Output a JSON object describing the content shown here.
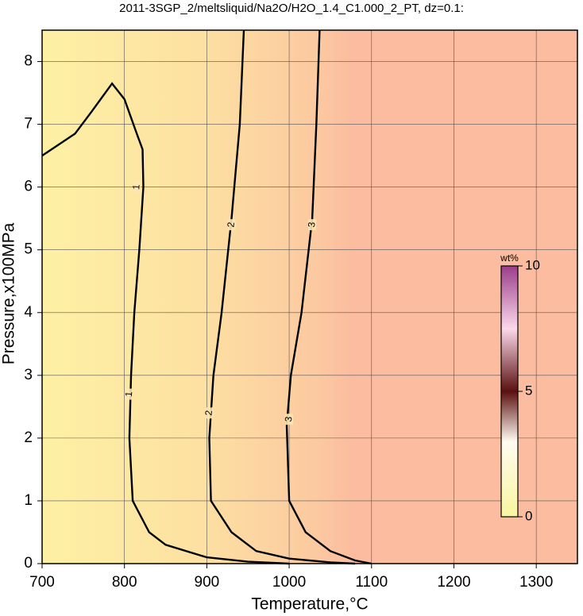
{
  "chart_data": {
    "type": "contour",
    "title": "2011-3SGP_2/meltsliquid/Na2O/H2O_1.4_C1.000_2_PT, dz=0.1:",
    "x_label": "Temperature,°C",
    "y_label": "Pressure,x100MPa",
    "xlim": [
      700,
      1350
    ],
    "xticks": [
      700,
      800,
      900,
      1000,
      1100,
      1200,
      1300
    ],
    "ylim": [
      0,
      8.5
    ],
    "yticks": [
      0,
      1,
      2,
      3,
      4,
      5,
      6,
      7,
      8
    ],
    "grid": true,
    "line_color": "#000000",
    "contours": [
      {
        "level": 1,
        "x": [
          700,
          740,
          760,
          785,
          800,
          815,
          822,
          823,
          818,
          812,
          808,
          806,
          810,
          830,
          850,
          900,
          950,
          1000
        ],
        "y": [
          6.5,
          6.85,
          7.2,
          7.65,
          7.4,
          6.85,
          6.6,
          6.0,
          5.0,
          4.0,
          3.0,
          2.0,
          1.0,
          0.5,
          0.3,
          0.1,
          0.03,
          0
        ],
        "label_x": [
          815,
          806
        ],
        "label_y": [
          6.0,
          2.7
        ]
      },
      {
        "level": 2,
        "x": [
          945,
          940,
          930,
          918,
          908,
          903,
          905,
          930,
          960,
          1000,
          1050,
          1080
        ],
        "y": [
          8.5,
          7.0,
          5.5,
          4.0,
          3.0,
          2.0,
          1.0,
          0.5,
          0.2,
          0.08,
          0.02,
          0
        ],
        "label_x": [
          930,
          903
        ],
        "label_y": [
          5.4,
          2.4
        ]
      },
      {
        "level": 3,
        "x": [
          1037,
          1033,
          1028,
          1015,
          1002,
          997,
          1000,
          1020,
          1050,
          1080,
          1100
        ],
        "y": [
          8.5,
          7.0,
          5.5,
          4.0,
          3.0,
          2.2,
          1.0,
          0.5,
          0.2,
          0.05,
          0
        ],
        "label_x": [
          1028,
          1000
        ],
        "label_y": [
          5.4,
          2.3
        ]
      }
    ],
    "colorbar": {
      "label": "wt%",
      "lim": [
        0,
        10
      ],
      "ticks": [
        0,
        5,
        10
      ]
    }
  }
}
